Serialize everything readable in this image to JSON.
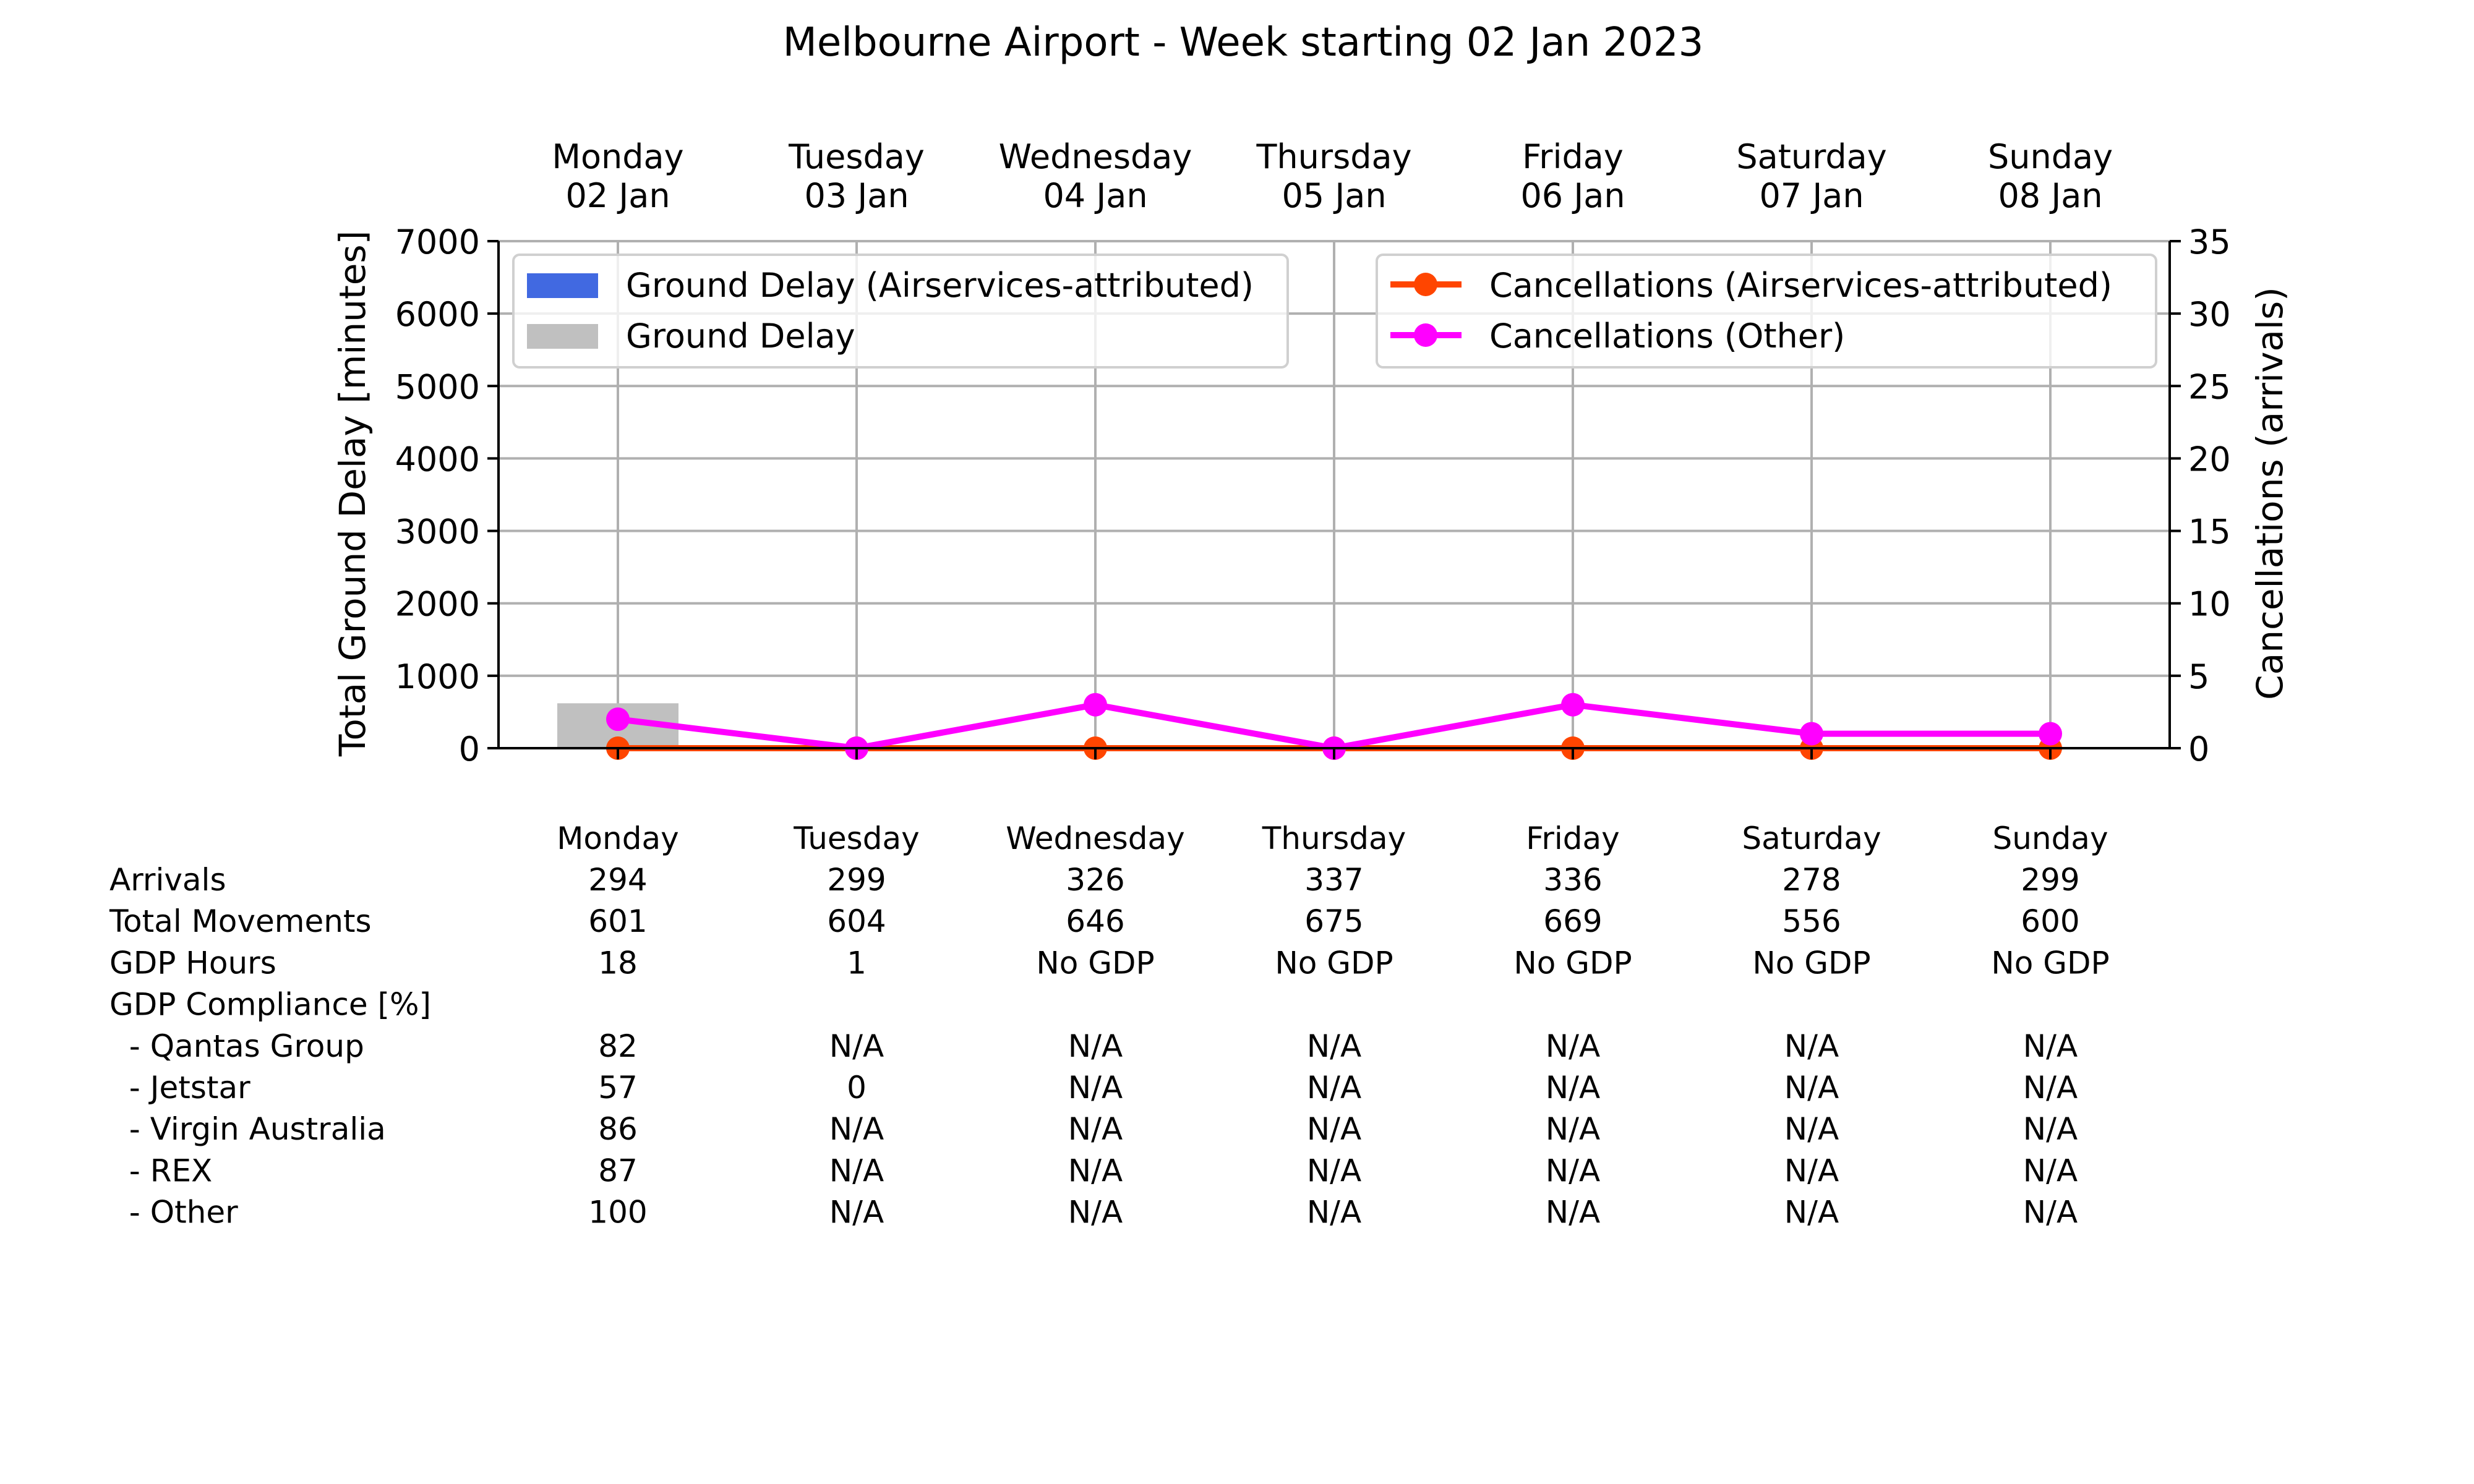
{
  "chart_data": {
    "type": "bar",
    "title": "Melbourne Airport - Week starting 02 Jan 2023",
    "categories": [
      "Monday",
      "Tuesday",
      "Wednesday",
      "Thursday",
      "Friday",
      "Saturday",
      "Sunday"
    ],
    "category_dates": [
      "02 Jan",
      "03 Jan",
      "04 Jan",
      "05 Jan",
      "06 Jan",
      "07 Jan",
      "08 Jan"
    ],
    "ylabel": "Total Ground Delay [minutes]",
    "ylim": [
      0,
      7000
    ],
    "yticks": [
      0,
      1000,
      2000,
      3000,
      4000,
      5000,
      6000,
      7000
    ],
    "y2label": "Cancellations (arrivals)",
    "y2lim": [
      0,
      35
    ],
    "y2ticks": [
      0,
      5,
      10,
      15,
      20,
      25,
      30,
      35
    ],
    "grid": true,
    "bar_series": [
      {
        "name": "Ground Delay (Airservices-attributed)",
        "color": "#4169e1",
        "values": [
          0,
          0,
          0,
          0,
          0,
          0,
          0
        ]
      },
      {
        "name": "Ground Delay",
        "color": "#c0c0c0",
        "values": [
          620,
          0,
          0,
          0,
          0,
          0,
          0
        ]
      }
    ],
    "line_series": [
      {
        "name": "Cancellations (Airservices-attributed)",
        "color": "#ff4500",
        "axis": "right",
        "values": [
          0,
          0,
          0,
          0,
          0,
          0,
          0
        ]
      },
      {
        "name": "Cancellations (Other)",
        "color": "#ff00ff",
        "axis": "right",
        "values": [
          2,
          0,
          3,
          0,
          3,
          1,
          1
        ]
      }
    ],
    "legend_left_placement": "upper-left",
    "legend_right_placement": "upper-right"
  },
  "table": {
    "header": [
      "Monday",
      "Tuesday",
      "Wednesday",
      "Thursday",
      "Friday",
      "Saturday",
      "Sunday"
    ],
    "rows": [
      {
        "label": "Arrivals",
        "values": [
          "294",
          "299",
          "326",
          "337",
          "336",
          "278",
          "299"
        ]
      },
      {
        "label": "Total Movements",
        "values": [
          "601",
          "604",
          "646",
          "675",
          "669",
          "556",
          "600"
        ]
      },
      {
        "label": "GDP Hours",
        "values": [
          "18",
          "1",
          "No GDP",
          "No GDP",
          "No GDP",
          "No GDP",
          "No GDP"
        ]
      },
      {
        "label": "GDP Compliance [%]",
        "values": [
          "",
          "",
          "",
          "",
          "",
          "",
          ""
        ]
      },
      {
        "label": "  - Qantas Group",
        "values": [
          "82",
          "N/A",
          "N/A",
          "N/A",
          "N/A",
          "N/A",
          "N/A"
        ]
      },
      {
        "label": "  - Jetstar",
        "values": [
          "57",
          "0",
          "N/A",
          "N/A",
          "N/A",
          "N/A",
          "N/A"
        ]
      },
      {
        "label": "  - Virgin Australia",
        "values": [
          "86",
          "N/A",
          "N/A",
          "N/A",
          "N/A",
          "N/A",
          "N/A"
        ]
      },
      {
        "label": "  - REX",
        "values": [
          "87",
          "N/A",
          "N/A",
          "N/A",
          "N/A",
          "N/A",
          "N/A"
        ]
      },
      {
        "label": "  - Other",
        "values": [
          "100",
          "N/A",
          "N/A",
          "N/A",
          "N/A",
          "N/A",
          "N/A"
        ]
      }
    ]
  }
}
